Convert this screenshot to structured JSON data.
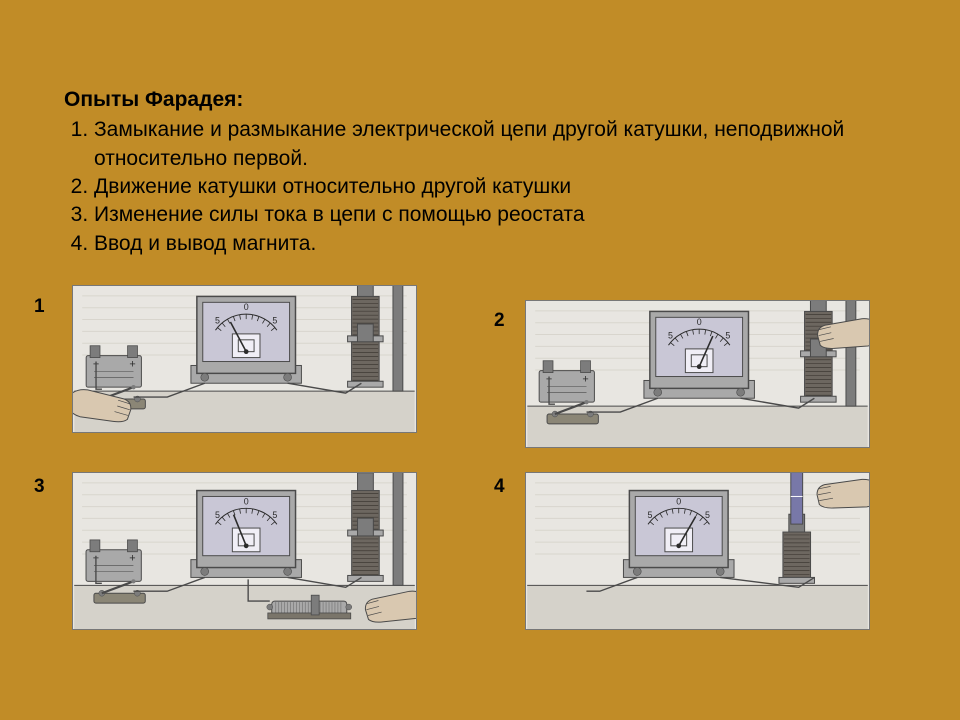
{
  "background_color": "#c18c27",
  "text": {
    "title": "Опыты Фарадея:",
    "items": [
      "Замыкание и размыкание электрической цепи другой катушки, неподвижной относительно первой.",
      "Движение катушки относительно другой катушки",
      "Изменение силы тока в цепи с помощью реостата",
      "Ввод и вывод магнита."
    ],
    "title_fontsize": 21,
    "item_fontsize": 21,
    "color": "#000000"
  },
  "labels": {
    "f1": "1",
    "f2": "2",
    "f3": "3",
    "f4": "4"
  },
  "figure_style": {
    "bg": "#e8e6e1",
    "table": "#d5d2ca",
    "edge": "#4a4a4a",
    "metal": "#a9a9a9",
    "metal_dark": "#7c7c7c",
    "face": "#c9c7d6",
    "coil": "#6d6760",
    "skin": "#d9c8b0",
    "text": "#2b2b2b",
    "scale_labels": [
      "5",
      "0",
      "5"
    ]
  },
  "figures": {
    "f1": {
      "type": "faraday-setup",
      "battery": true,
      "switch": true,
      "rheostat": false,
      "two_coils": true,
      "hand": "left-switch",
      "needle_deg": -28
    },
    "f2": {
      "type": "faraday-setup",
      "battery": true,
      "switch": true,
      "rheostat": false,
      "two_coils": true,
      "hand": "right-coil",
      "needle_deg": 24
    },
    "f3": {
      "type": "faraday-setup",
      "battery": true,
      "switch": true,
      "rheostat": true,
      "two_coils": true,
      "hand": "right-rheo",
      "needle_deg": -22
    },
    "f4": {
      "type": "faraday-setup",
      "battery": false,
      "switch": false,
      "rheostat": false,
      "two_coils": false,
      "hand": "right-magnet",
      "needle_deg": 30
    }
  }
}
